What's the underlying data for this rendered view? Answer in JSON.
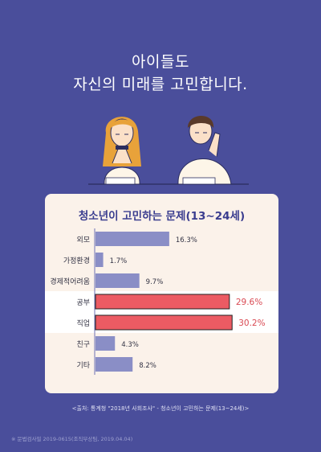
{
  "headline": {
    "line1": "아이들도",
    "line2": "자신의 미래를 고민합니다."
  },
  "chart_data": {
    "type": "bar",
    "title": "청소년이 고민하는 문제(13~24세)",
    "categories": [
      "외모",
      "가정환경",
      "경제적어려움",
      "공부",
      "직업",
      "친구",
      "기타"
    ],
    "values": [
      16.3,
      1.7,
      9.7,
      29.6,
      30.2,
      4.3,
      8.2
    ],
    "value_labels": [
      "16.3%",
      "1.7%",
      "9.7%",
      "29.6%",
      "30.2%",
      "4.3%",
      "8.2%"
    ],
    "highlighted": [
      false,
      false,
      false,
      true,
      true,
      false,
      false
    ],
    "orientation": "horizontal",
    "xlim": [
      0,
      33
    ],
    "colors": {
      "bar": "#8a8ec6",
      "highlight": "#ec5b63",
      "highlight_text": "#d94a53",
      "card": "#fbf2ea"
    }
  },
  "source": "<출처: 통계청 \"2018년 사회조사\" - 청소년이 고민하는 문제(13~24세)>",
  "footnote": "※ 문법검사필 2019-0615(조직부상팀, 2019.04.04)"
}
